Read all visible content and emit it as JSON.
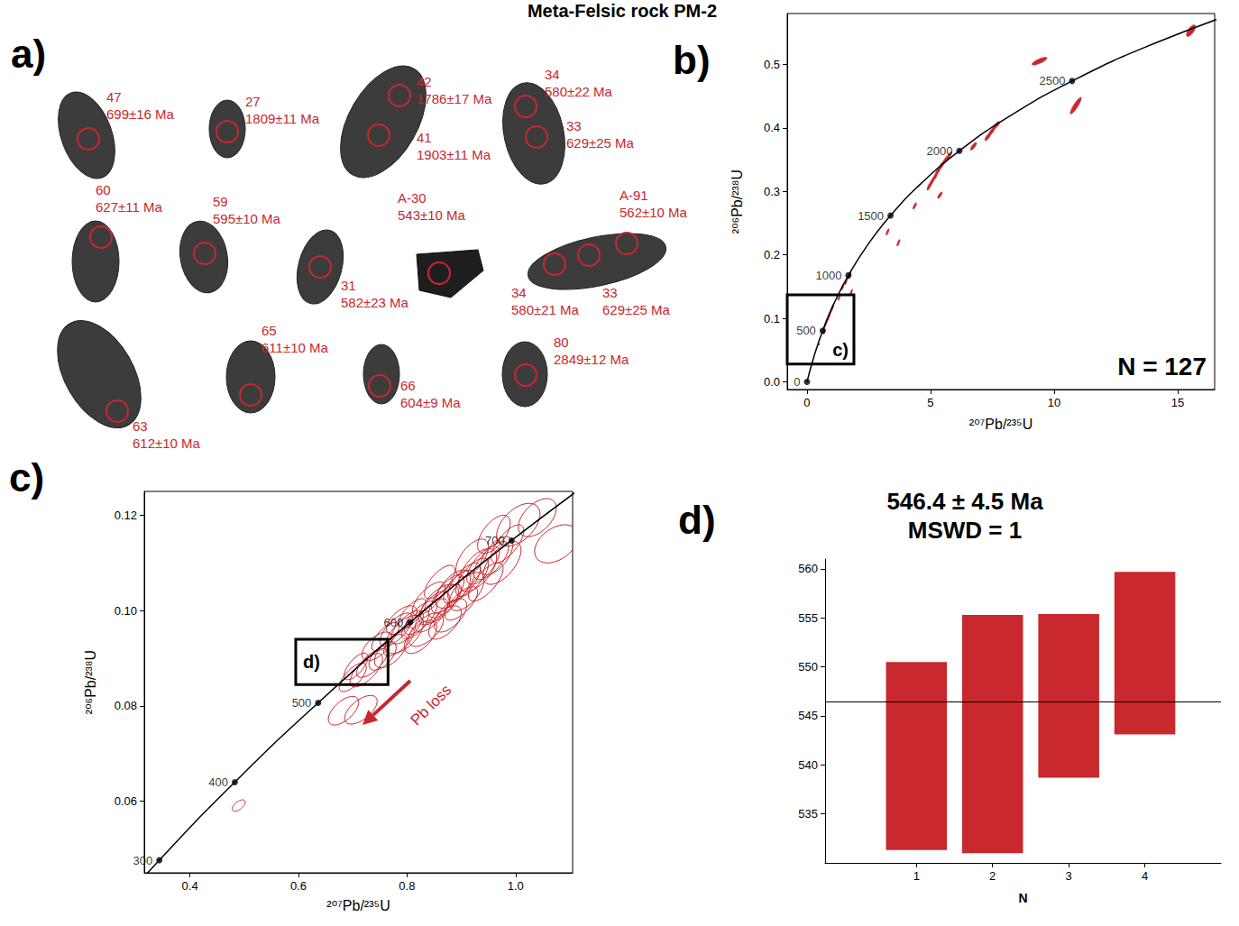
{
  "title": "Meta-Felsic rock PM-2",
  "diagram": {
    "panel": "a)",
    "color": "#c8282e",
    "grains": [
      {
        "spots": [
          {
            "spot": "47",
            "age": "699±16 Ma"
          }
        ]
      },
      {
        "spots": [
          {
            "spot": "27",
            "age": "1809±11 Ma"
          }
        ]
      },
      {
        "spots": [
          {
            "spot": "42",
            "age": "1786±17 Ma"
          },
          {
            "spot": "41",
            "age": "1903±11 Ma"
          }
        ]
      },
      {
        "spots": [
          {
            "spot": "34",
            "age": "580±22 Ma"
          },
          {
            "spot": "33",
            "age": "629±25 Ma"
          }
        ]
      },
      {
        "spots": [
          {
            "spot": "60",
            "age": "627±11 Ma"
          }
        ]
      },
      {
        "spots": [
          {
            "spot": "59",
            "age": "595±10 Ma"
          }
        ]
      },
      {
        "spots": [
          {
            "spot": "31",
            "age": "582±23 Ma"
          }
        ]
      },
      {
        "spots": [
          {
            "spot": "A-30",
            "age": "543±10 Ma"
          }
        ]
      },
      {
        "spots": [
          {
            "spot": "A-91",
            "age": "562±10 Ma"
          },
          {
            "spot": "34",
            "age": "580±21 Ma"
          },
          {
            "spot": "33",
            "age": "629±25 Ma"
          }
        ]
      },
      {
        "spots": [
          {
            "spot": "63",
            "age": "612±10 Ma"
          }
        ]
      },
      {
        "spots": [
          {
            "spot": "65",
            "age": "611±10 Ma"
          }
        ]
      },
      {
        "spots": [
          {
            "spot": "66",
            "age": "604±9 Ma"
          }
        ]
      },
      {
        "spots": [
          {
            "spot": "80",
            "age": "2849±12 Ma"
          }
        ]
      }
    ]
  },
  "chart_data": [
    {
      "panel": "b)",
      "type": "concordia",
      "x_label": "²⁰⁷Pb/²³⁵U",
      "y_label": "²⁰⁶Pb/²³⁸U",
      "xlim": [
        -0.8,
        16.5
      ],
      "ylim": [
        -0.012,
        0.58
      ],
      "xticks": [
        0,
        5,
        10,
        15
      ],
      "yticks": [
        {
          "value": 0,
          "label": "0.0"
        },
        0.1,
        0.2,
        0.3,
        0.4,
        0.5
      ],
      "grid": false,
      "color": "#c8282e",
      "marker": "filled_ellipse",
      "annotation": "N = 127",
      "concordia": {
        "age": [
          0,
          250,
          500,
          750,
          1000,
          1250,
          1500,
          1750,
          2000,
          2250,
          2500,
          2750,
          3000
        ],
        "x": [
          0,
          0.2792,
          0.6363,
          1.0931,
          1.6774,
          2.4249,
          3.381,
          4.604,
          6.1685,
          8.1698,
          10.7297,
          14.0043,
          18.1931
        ],
        "y": [
          0,
          0.03954,
          0.08065,
          0.12338,
          0.1678,
          0.21398,
          0.26199,
          0.31189,
          0.36377,
          0.41769,
          0.47375,
          0.53203,
          0.59261
        ],
        "labelled_ages": [
          0,
          500,
          1000,
          1500,
          2000,
          2500
        ]
      },
      "ellipses": {
        "x": [
          15.54,
          9.41,
          10.88,
          7.66,
          7.47,
          7.32,
          6.74,
          5.75,
          5.6,
          5.45,
          5.3,
          5.18,
          5.05,
          4.95,
          5.38,
          4.36,
          3.26,
          3.7,
          1.72,
          1.58,
          1.45,
          1.79,
          1.3,
          1.04,
          0.99,
          0.93,
          0.89,
          0.85,
          0.8,
          0.76,
          0.72,
          0.7,
          0.49
        ],
        "y": [
          0.553,
          0.505,
          0.435,
          0.404,
          0.394,
          0.386,
          0.371,
          0.356,
          0.349,
          0.341,
          0.332,
          0.323,
          0.315,
          0.308,
          0.294,
          0.277,
          0.236,
          0.219,
          0.168,
          0.158,
          0.15,
          0.141,
          0.133,
          0.118,
          0.114,
          0.108,
          0.104,
          0.1,
          0.096,
          0.092,
          0.088,
          0.079,
          0.059
        ],
        "x_err": [
          0.18,
          0.3,
          0.22,
          0.14,
          0.12,
          0.12,
          0.12,
          0.1,
          0.1,
          0.1,
          0.1,
          0.09,
          0.09,
          0.09,
          0.09,
          0.07,
          0.06,
          0.06,
          0.06,
          0.05,
          0.05,
          0.05,
          0.05,
          0.04,
          0.04,
          0.04,
          0.04,
          0.04,
          0.04,
          0.04,
          0.03,
          0.03,
          0.02
        ],
        "y_err": [
          0.009,
          0.006,
          0.013,
          0.006,
          0.006,
          0.006,
          0.006,
          0.006,
          0.006,
          0.006,
          0.006,
          0.006,
          0.006,
          0.006,
          0.005,
          0.005,
          0.005,
          0.005,
          0.006,
          0.005,
          0.005,
          0.005,
          0.005,
          0.005,
          0.005,
          0.005,
          0.005,
          0.005,
          0.005,
          0.005,
          0.004,
          0.004,
          0.002
        ],
        "rho": [
          0.7,
          0.8,
          0.9,
          0.8,
          0.8,
          0.8,
          0.8,
          0.8,
          0.8,
          0.8,
          0.8,
          0.8,
          0.8,
          0.8,
          0.8,
          0.8,
          0.8,
          0.8,
          0.8,
          0.8,
          0.8,
          0.8,
          0.8,
          0.8,
          0.8,
          0.8,
          0.8,
          0.8,
          0.8,
          0.8,
          0.8,
          0.8,
          0.8
        ]
      },
      "zoom_box": {
        "label": "c)",
        "x": [
          -0.8,
          1.9
        ],
        "y": [
          0.028,
          0.137
        ]
      }
    },
    {
      "panel": "c)",
      "type": "concordia",
      "x_label": "²⁰⁷Pb/²³⁵U",
      "y_label": "²⁰⁶Pb/²³⁸U",
      "xlim": [
        0.316,
        1.105
      ],
      "ylim": [
        0.045,
        0.125
      ],
      "xticks": [
        0.4,
        0.6,
        0.8,
        {
          "value": 1,
          "label": "1.0"
        }
      ],
      "yticks": [
        0.06,
        0.08,
        {
          "value": 0.1,
          "label": "0.10"
        },
        0.12
      ],
      "grid": false,
      "color": "#c8282e",
      "marker": "open_ellipse",
      "annotation": "Pb loss",
      "concordia": {
        "age": [
          200,
          300,
          400,
          500,
          600,
          700,
          800
        ],
        "x": [
          0.2177,
          0.3437,
          0.4828,
          0.6363,
          0.8056,
          0.9925,
          1.1987
        ],
        "y": [
          0.03151,
          0.04764,
          0.06402,
          0.08065,
          0.09754,
          0.1147,
          0.13213
        ],
        "labelled_ages": [
          300,
          400,
          500,
          600,
          700
        ]
      },
      "ellipses": {
        "x": [
          0.49,
          0.683,
          0.715,
          0.7,
          0.725,
          0.706,
          0.735,
          0.755,
          0.77,
          0.785,
          0.795,
          0.8,
          0.815,
          0.79,
          0.825,
          0.835,
          0.81,
          0.845,
          0.85,
          0.86,
          0.87,
          0.875,
          0.885,
          0.895,
          0.905,
          0.91,
          0.92,
          0.93,
          0.94,
          0.955,
          0.965,
          0.975,
          0.985,
          1.005,
          1.04,
          1.075,
          0.96,
          0.88,
          0.84,
          0.76,
          0.745,
          0.87,
          0.9,
          0.945,
          0.825,
          0.86,
          0.78,
          0.92
        ],
        "y": [
          0.0591,
          0.079,
          0.0792,
          0.086,
          0.0875,
          0.0883,
          0.089,
          0.0905,
          0.0915,
          0.0935,
          0.095,
          0.0965,
          0.097,
          0.098,
          0.0985,
          0.096,
          0.0995,
          0.099,
          0.1005,
          0.1015,
          0.102,
          0.1035,
          0.1045,
          0.105,
          0.106,
          0.104,
          0.107,
          0.1085,
          0.1095,
          0.1105,
          0.1115,
          0.11,
          0.114,
          0.118,
          0.1195,
          0.114,
          0.116,
          0.099,
          0.1025,
          0.0945,
          0.0925,
          0.0975,
          0.1015,
          0.106,
          0.0945,
          0.106,
          0.096,
          0.111
        ],
        "x_err": [
          0.012,
          0.028,
          0.03,
          0.025,
          0.03,
          0.022,
          0.028,
          0.025,
          0.03,
          0.028,
          0.035,
          0.03,
          0.025,
          0.028,
          0.03,
          0.032,
          0.025,
          0.03,
          0.028,
          0.035,
          0.03,
          0.03,
          0.032,
          0.028,
          0.03,
          0.032,
          0.03,
          0.035,
          0.03,
          0.032,
          0.03,
          0.035,
          0.03,
          0.04,
          0.035,
          0.04,
          0.03,
          0.03,
          0.03,
          0.025,
          0.028,
          0.03,
          0.03,
          0.032,
          0.03,
          0.028,
          0.03,
          0.03
        ],
        "y_err": [
          0.0012,
          0.003,
          0.003,
          0.003,
          0.0035,
          0.0028,
          0.003,
          0.003,
          0.0035,
          0.003,
          0.004,
          0.0035,
          0.003,
          0.003,
          0.0035,
          0.0035,
          0.003,
          0.0035,
          0.0035,
          0.004,
          0.0035,
          0.004,
          0.004,
          0.0035,
          0.004,
          0.004,
          0.004,
          0.0045,
          0.004,
          0.004,
          0.004,
          0.0045,
          0.004,
          0.0045,
          0.004,
          0.004,
          0.004,
          0.0035,
          0.0035,
          0.003,
          0.003,
          0.0035,
          0.0035,
          0.004,
          0.0035,
          0.0035,
          0.0035,
          0.004
        ],
        "rho": [
          0.6,
          0.6,
          0.6,
          0.7,
          0.7,
          0.7,
          0.7,
          0.6,
          0.6,
          0.7,
          0.6,
          0.7,
          0.7,
          0.6,
          0.7,
          0.6,
          0.7,
          0.7,
          0.6,
          0.6,
          0.7,
          0.7,
          0.6,
          0.7,
          0.7,
          0.6,
          0.7,
          0.6,
          0.7,
          0.7,
          0.6,
          0.6,
          0.7,
          0.5,
          0.5,
          0.4,
          0.6,
          0.6,
          0.7,
          0.7,
          0.6,
          0.6,
          0.7,
          0.7,
          0.6,
          0.7,
          0.7,
          0.6
        ]
      },
      "zoom_box": {
        "label": "d)",
        "x": [
          0.595,
          0.765
        ],
        "y": [
          0.0845,
          0.094
        ]
      }
    },
    {
      "panel": "d)",
      "type": "range_bar",
      "title": "546.4 ± 4.5 Ma",
      "subtitle": "MSWD = 1",
      "x_label": "N",
      "x": [
        1,
        2,
        3,
        4
      ],
      "intervals": [
        [
          531.3,
          550.5
        ],
        [
          531.0,
          555.3
        ],
        [
          538.7,
          555.4
        ],
        [
          543.1,
          559.7
        ]
      ],
      "mean": 546.4,
      "xlim": [
        -0.2,
        5
      ],
      "xticks": [
        1,
        2,
        3,
        4
      ],
      "ylim": [
        530,
        561
      ],
      "yticks": [
        535,
        540,
        545,
        550,
        555,
        560
      ],
      "grid": false,
      "color": "#c8282e"
    }
  ]
}
